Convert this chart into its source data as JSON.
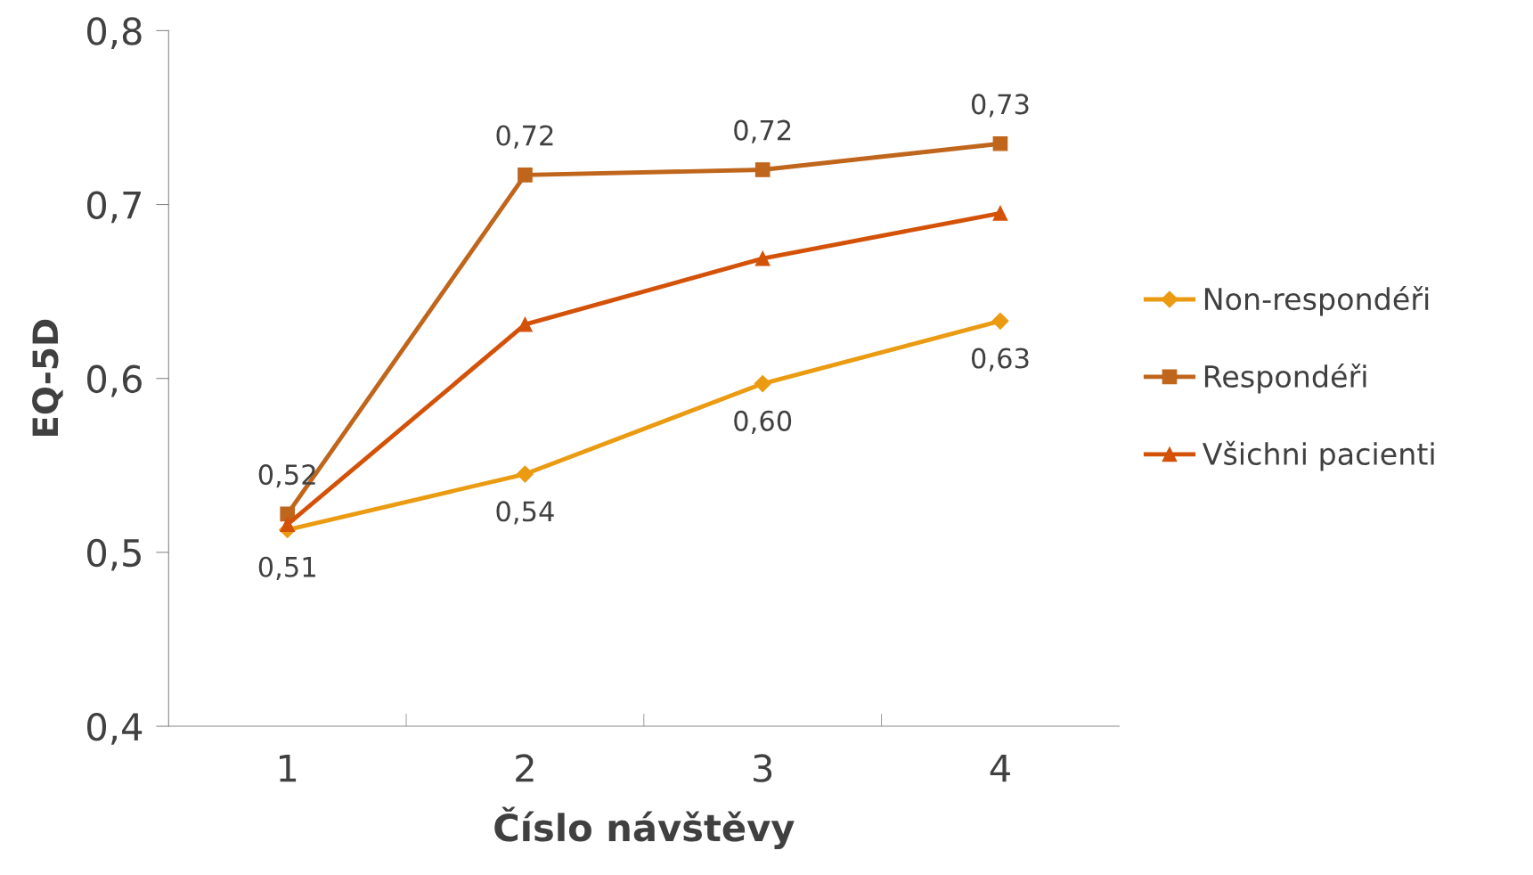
{
  "chart_data": {
    "type": "line",
    "xlabel": "Číslo návštěvy",
    "ylabel": "EQ-5D",
    "categories": [
      "1",
      "2",
      "3",
      "4"
    ],
    "ylim": [
      0.4,
      0.8
    ],
    "yticks": [
      {
        "value": 0.4,
        "label": "0,4"
      },
      {
        "value": 0.5,
        "label": "0,5"
      },
      {
        "value": 0.6,
        "label": "0,6"
      },
      {
        "value": 0.7,
        "label": "0,7"
      },
      {
        "value": 0.8,
        "label": "0,8"
      }
    ],
    "grid": false,
    "legend": "right",
    "line_style": "solid",
    "series": [
      {
        "name": "Non-respondéři",
        "color": "#eb9b12",
        "marker": "diamond",
        "values": [
          0.513,
          0.545,
          0.597,
          0.633
        ],
        "value_labels": [
          "0,51",
          "0,54",
          "0,60",
          "0,63"
        ]
      },
      {
        "name": "Respondéři",
        "color": "#c0661c",
        "marker": "square",
        "values": [
          0.522,
          0.717,
          0.72,
          0.735
        ],
        "value_labels": [
          "0,52",
          "0,72",
          "0,72",
          "0,73"
        ]
      },
      {
        "name": "Všichni pacienti",
        "color": "#d35208",
        "marker": "triangle",
        "values": [
          0.516,
          0.631,
          0.669,
          0.695
        ]
      }
    ]
  }
}
